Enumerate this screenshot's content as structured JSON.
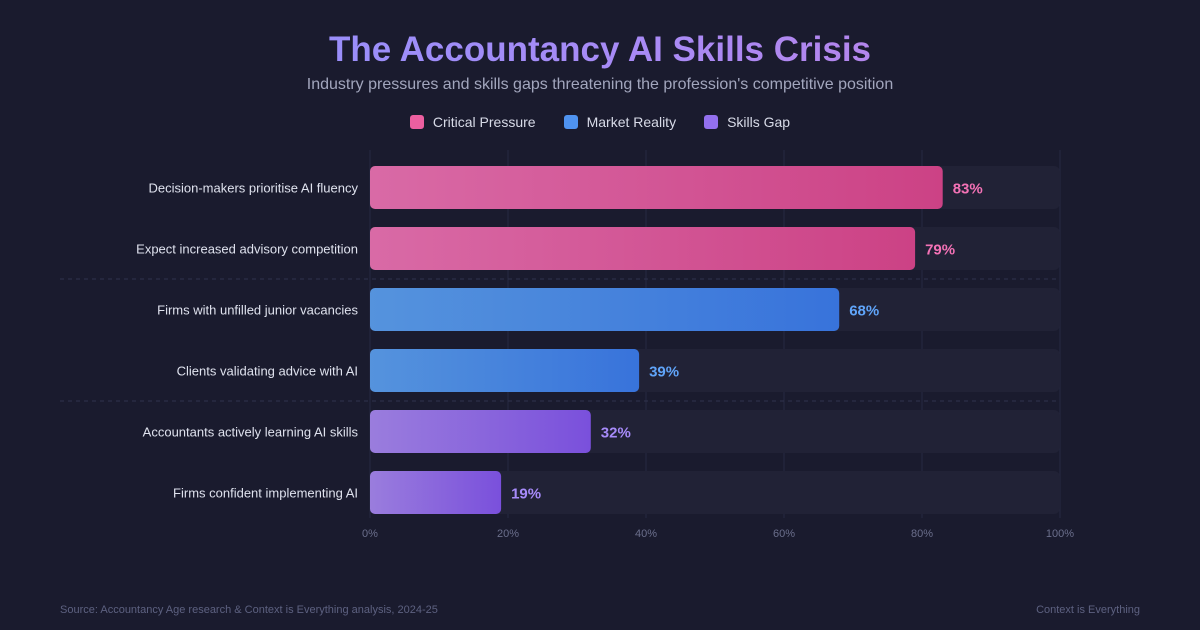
{
  "chart_data": {
    "type": "bar",
    "orientation": "horizontal",
    "title": "The Accountancy AI Skills Crisis",
    "subtitle": "Industry pressures and skills gaps threatening the profession's competitive position",
    "categories": [
      "Decision-makers prioritise AI fluency",
      "Expect increased advisory competition",
      "Firms with unfilled junior vacancies",
      "Clients validating advice with AI",
      "Accountants actively learning AI skills",
      "Firms confident implementing AI"
    ],
    "values": [
      83,
      79,
      68,
      39,
      32,
      19
    ],
    "value_labels": [
      "83%",
      "79%",
      "68%",
      "39%",
      "32%",
      "19%"
    ],
    "groups": [
      0,
      0,
      1,
      1,
      2,
      2
    ],
    "legend": [
      {
        "name": "Critical Pressure",
        "color": "#ec5fa0",
        "gradient": [
          "#d96aa6",
          "#cc4285"
        ],
        "label_color": "#f472b6"
      },
      {
        "name": "Market Reality",
        "color": "#4f93f0",
        "gradient": [
          "#5593dd",
          "#3873db"
        ],
        "label_color": "#60a5fa"
      },
      {
        "name": "Skills Gap",
        "color": "#9370ee",
        "gradient": [
          "#9a7ddd",
          "#7a50dc"
        ],
        "label_color": "#a78bfa"
      }
    ],
    "xlim": [
      0,
      100
    ],
    "xticks": [
      "0%",
      "20%",
      "40%",
      "60%",
      "80%",
      "100%"
    ],
    "grid": true,
    "legend_placement": "top-center"
  },
  "footer": {
    "source": "Source: Accountancy Age research & Context is Everything analysis, 2024-25",
    "brand": "Context is Everything"
  }
}
